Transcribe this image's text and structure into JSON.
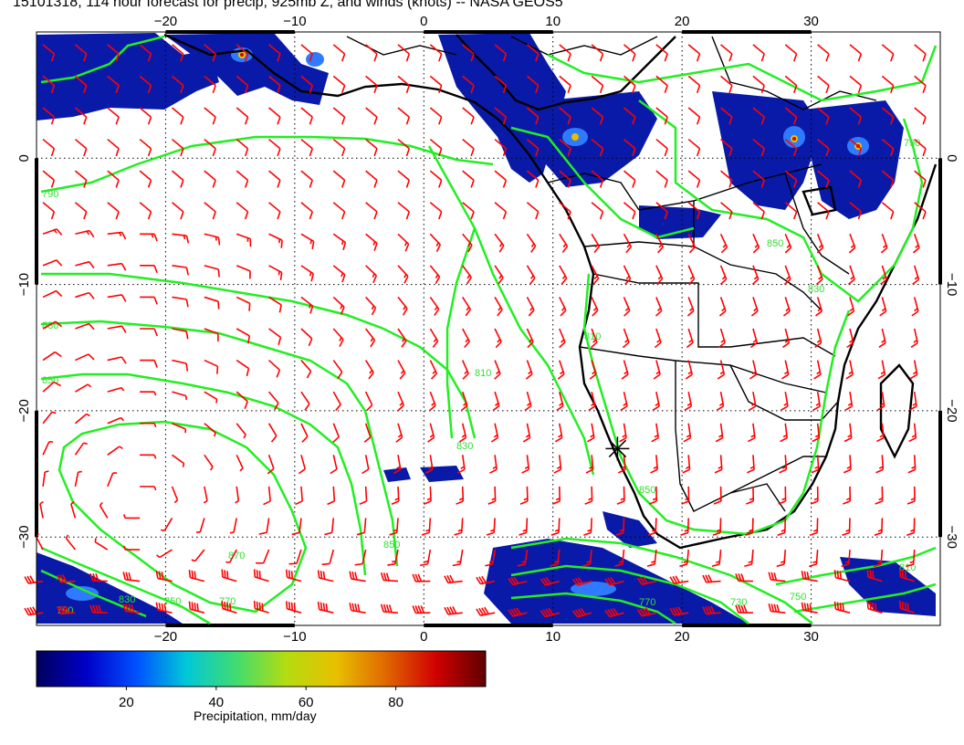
{
  "title": "15101318, 114 hour forecast for precip, 925mb Z, and winds (knots) -- NASA GEOS5",
  "map": {
    "lon_range": [
      -30,
      40
    ],
    "lat_range": [
      -37,
      10
    ],
    "lon_ticks": [
      -20,
      -10,
      0,
      10,
      20,
      30
    ],
    "lat_ticks": [
      0,
      -10,
      -20,
      -30
    ],
    "lon_tick_labels": [
      "−20",
      "−10",
      "0",
      "10",
      "20",
      "30"
    ],
    "lat_tick_labels": [
      "0",
      "−10",
      "−20",
      "−30"
    ],
    "marker": {
      "lon": 15.0,
      "lat": -23.0,
      "symbol": "asterisk"
    }
  },
  "contours": {
    "variable": "925mb Z",
    "color": "#22ee22",
    "labels": [
      "790",
      "830",
      "850",
      "810",
      "830",
      "850",
      "870",
      "790",
      "850",
      "770",
      "750",
      "730",
      "770",
      "790",
      "850",
      "810",
      "830",
      "830",
      "750",
      "810"
    ]
  },
  "winds": {
    "color": "#ff0000",
    "units": "knots"
  },
  "colorbar": {
    "label": "Precipitation, mm/day",
    "ticks": [
      "20",
      "40",
      "60",
      "80"
    ],
    "tick_values": [
      20,
      40,
      60,
      80
    ],
    "range": [
      0,
      100
    ],
    "colors": [
      "#00005a",
      "#0000c8",
      "#0050ff",
      "#00c8d8",
      "#40dc70",
      "#b4dc10",
      "#e8c000",
      "#e06800",
      "#d00000",
      "#600000"
    ]
  }
}
